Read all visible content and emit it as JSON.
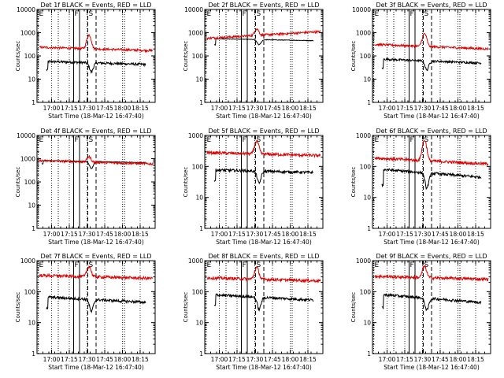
{
  "chart_data": {
    "type": "line",
    "ylabel": "Counts/sec",
    "xlabel": "Start Time (18-Mar-12 16:47:40)",
    "y_scale": "log",
    "ylim": [
      1,
      1000
    ],
    "xlim_minutes_after_start": [
      0,
      100
    ],
    "xtick_labels": [
      "17:00",
      "17:15",
      "17:30",
      "17:45",
      "18:00",
      "18:15"
    ],
    "xtick_minutes_after_start": [
      12.33,
      27.33,
      42.33,
      57.33,
      72.33,
      87.33
    ],
    "ytick_labels": [
      "1",
      "10",
      "100",
      "1000"
    ],
    "ytick_values": [
      1,
      10,
      100,
      1000
    ],
    "ytick_labels_wide": [
      "1",
      "10",
      "100",
      "1000",
      "10000"
    ],
    "ytick_values_wide": [
      1,
      10,
      100,
      1000,
      10000
    ],
    "series_colors": {
      "BLACK": "#000000",
      "RED": "#e00000"
    },
    "markers": [
      {
        "label": "E",
        "style": "dotted",
        "minutes": [
          1,
          18,
          74
        ]
      },
      {
        "label": "F",
        "style": "solid",
        "minutes": [
          31,
          36
        ]
      },
      {
        "label": "S",
        "style": "dashed",
        "minutes": [
          43,
          50
        ]
      }
    ],
    "panels": [
      {
        "title": "Det 1f BLACK = Events, RED = LLD",
        "ylim": [
          1,
          10000
        ],
        "red": {
          "base": 200,
          "drift": -0.15,
          "peak": 800,
          "peak_at": 44,
          "peak_width": 2.2
        },
        "black": {
          "base": 50,
          "drift": -0.15,
          "dip_depth": 0.6,
          "start_at": 8,
          "end_at": 92,
          "start_level": 25,
          "noise": 0.12
        }
      },
      {
        "title": "Det 2f BLACK = Events, RED = LLD",
        "ylim": [
          1,
          10000
        ],
        "red": {
          "base": 800,
          "drift": 0.3,
          "peak": 1500,
          "peak_at": 44,
          "peak_width": 2.2
        },
        "black": {
          "base": 500,
          "drift": -0.1,
          "dip_depth": 0.4,
          "start_at": 8,
          "end_at": 92,
          "start_level": 300,
          "noise": 0.03
        }
      },
      {
        "title": "Det 3f BLACK = Events, RED = LLD",
        "ylim": [
          1,
          10000
        ],
        "red": {
          "base": 250,
          "drift": -0.2,
          "peak": 900,
          "peak_at": 44,
          "peak_width": 2.2
        },
        "black": {
          "base": 60,
          "drift": -0.2,
          "dip_depth": 0.6,
          "start_at": 8,
          "end_at": 92,
          "start_level": 30,
          "noise": 0.1
        }
      },
      {
        "title": "Det 4f BLACK = Events, RED = LLD",
        "ylim": [
          1,
          10000
        ],
        "red": {
          "base": 700,
          "drift": -0.15,
          "peak": 1200,
          "peak_at": 44,
          "peak_width": 2.2
        },
        "black": {
          "base": 750,
          "drift": -0.1,
          "dip_depth": 0.5,
          "start_at": 4,
          "end_at": 92,
          "start_level": 600,
          "noise": 0.03
        }
      },
      {
        "title": "Det 5f BLACK = Events, RED = LLD",
        "ylim": [
          1,
          1000
        ],
        "red": {
          "base": 250,
          "drift": -0.1,
          "peak": 650,
          "peak_at": 44,
          "peak_width": 2.2
        },
        "black": {
          "base": 70,
          "drift": -0.1,
          "dip_depth": 0.6,
          "start_at": 8,
          "end_at": 92,
          "start_level": 35,
          "noise": 0.1
        }
      },
      {
        "title": "Det 6f BLACK = Events, RED = LLD",
        "ylim": [
          1,
          1000
        ],
        "red": {
          "base": 150,
          "drift": -0.2,
          "peak": 700,
          "peak_at": 44,
          "peak_width": 2.2
        },
        "black": {
          "base": 60,
          "drift": -0.3,
          "dip_depth": 0.7,
          "start_at": 8,
          "end_at": 92,
          "start_level": 25,
          "noise": 0.1
        }
      },
      {
        "title": "Det 7f BLACK = Events, RED = LLD",
        "ylim": [
          1,
          1000
        ],
        "red": {
          "base": 300,
          "drift": -0.1,
          "peak": 650,
          "peak_at": 44,
          "peak_width": 2.2
        },
        "black": {
          "base": 55,
          "drift": -0.2,
          "dip_depth": 0.6,
          "start_at": 8,
          "end_at": 92,
          "start_level": 30,
          "noise": 0.1
        }
      },
      {
        "title": "Det 8f BLACK = Events, RED = LLD",
        "ylim": [
          1,
          1000
        ],
        "red": {
          "base": 250,
          "drift": -0.1,
          "peak": 600,
          "peak_at": 44,
          "peak_width": 2.2
        },
        "black": {
          "base": 65,
          "drift": -0.2,
          "dip_depth": 0.6,
          "start_at": 8,
          "end_at": 92,
          "start_level": 35,
          "noise": 0.1
        }
      },
      {
        "title": "Det 9f BLACK = Events, RED = LLD",
        "ylim": [
          1,
          1000
        ],
        "red": {
          "base": 280,
          "drift": -0.1,
          "peak": 650,
          "peak_at": 44,
          "peak_width": 2.2
        },
        "black": {
          "base": 60,
          "drift": -0.3,
          "dip_depth": 0.6,
          "start_at": 8,
          "end_at": 92,
          "start_level": 30,
          "noise": 0.1
        }
      }
    ]
  }
}
